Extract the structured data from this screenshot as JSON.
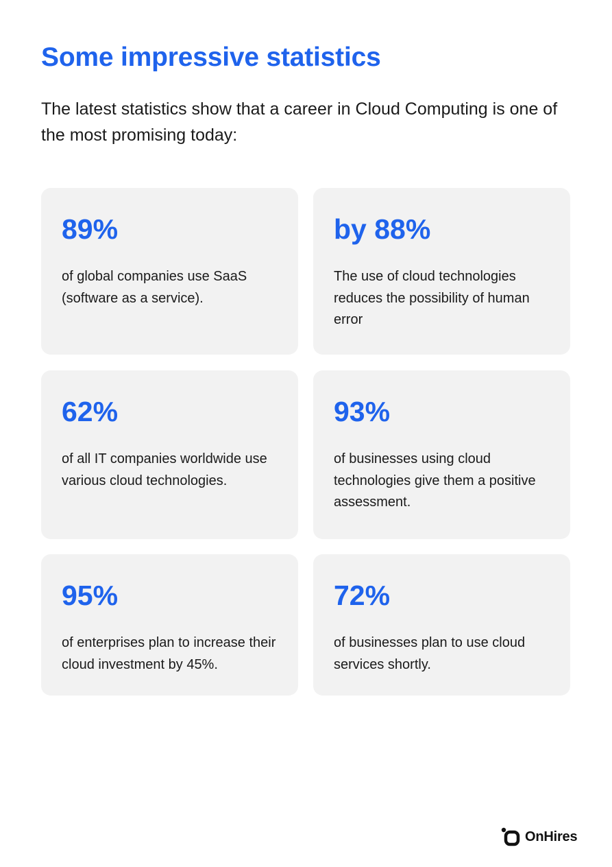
{
  "page": {
    "title": "Some impressive statistics",
    "intro": "The latest statistics show that a career in Cloud Computing is one of the most promising today:"
  },
  "colors": {
    "accent": "#1f63ec",
    "card_background": "#f2f2f2",
    "text": "#1a1a1a"
  },
  "stats": [
    {
      "value": "89%",
      "description": "of global companies use SaaS (software as a service)."
    },
    {
      "value": "by 88%",
      "description": "The use of cloud technologies reduces the possibility of human error"
    },
    {
      "value": "62%",
      "description": "of all IT companies worldwide use various cloud technologies."
    },
    {
      "value": "93%",
      "description": "of businesses using cloud technologies give them a positive assessment."
    },
    {
      "value": "95%",
      "description": "of enterprises plan to increase their cloud investment by 45%."
    },
    {
      "value": "72%",
      "description": "of businesses plan to use cloud services shortly."
    }
  ],
  "brand": {
    "name": "OnHires",
    "icon": "onhires-logo-icon"
  }
}
